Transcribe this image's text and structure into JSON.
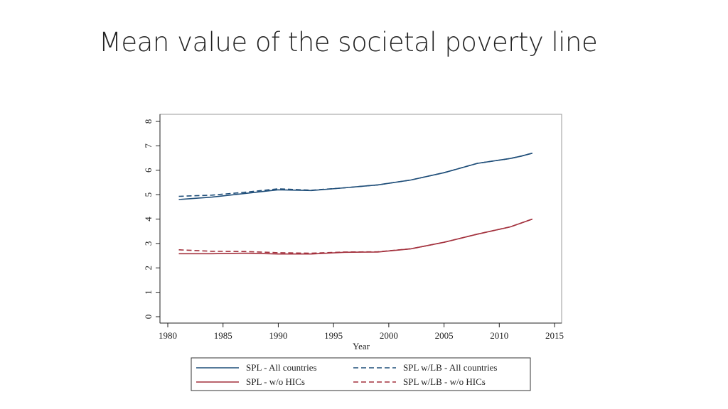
{
  "title": "Mean value of the societal poverty line",
  "chart_data": {
    "type": "line",
    "title": "Mean value of the societal poverty line",
    "xlabel": "Year",
    "ylabel": "",
    "xlim": [
      1980,
      2015
    ],
    "ylim": [
      0,
      8
    ],
    "xticks": [
      1980,
      1985,
      1990,
      1995,
      2000,
      2005,
      2010,
      2015
    ],
    "yticks": [
      0,
      1,
      2,
      3,
      4,
      5,
      6,
      7,
      8
    ],
    "grid": false,
    "legend_position": "bottom",
    "x": [
      1981,
      1984,
      1987,
      1990,
      1993,
      1996,
      1999,
      2002,
      2005,
      2008,
      2011,
      2012,
      2013
    ],
    "series": [
      {
        "name": "SPL - All countries",
        "color": "#1f4e79",
        "dash": "solid",
        "values": [
          4.8,
          4.9,
          5.05,
          5.2,
          5.17,
          5.28,
          5.4,
          5.6,
          5.9,
          6.28,
          6.48,
          6.58,
          6.7
        ]
      },
      {
        "name": "SPL w/LB - All countries",
        "color": "#1f4e79",
        "dash": "dashed",
        "values": [
          4.93,
          4.98,
          5.1,
          5.24,
          5.18,
          5.28,
          5.4,
          5.6,
          5.9,
          6.28,
          6.48,
          6.58,
          6.7
        ]
      },
      {
        "name": "SPL - w/o HICs",
        "color": "#a3313d",
        "dash": "solid",
        "values": [
          2.58,
          2.58,
          2.6,
          2.57,
          2.57,
          2.64,
          2.65,
          2.78,
          3.05,
          3.38,
          3.68,
          3.84,
          4.0
        ]
      },
      {
        "name": "SPL w/LB - w/o HICs",
        "color": "#a3313d",
        "dash": "dashed",
        "values": [
          2.74,
          2.68,
          2.67,
          2.62,
          2.6,
          2.65,
          2.66,
          2.78,
          3.05,
          3.38,
          3.68,
          3.84,
          4.0
        ]
      }
    ]
  }
}
